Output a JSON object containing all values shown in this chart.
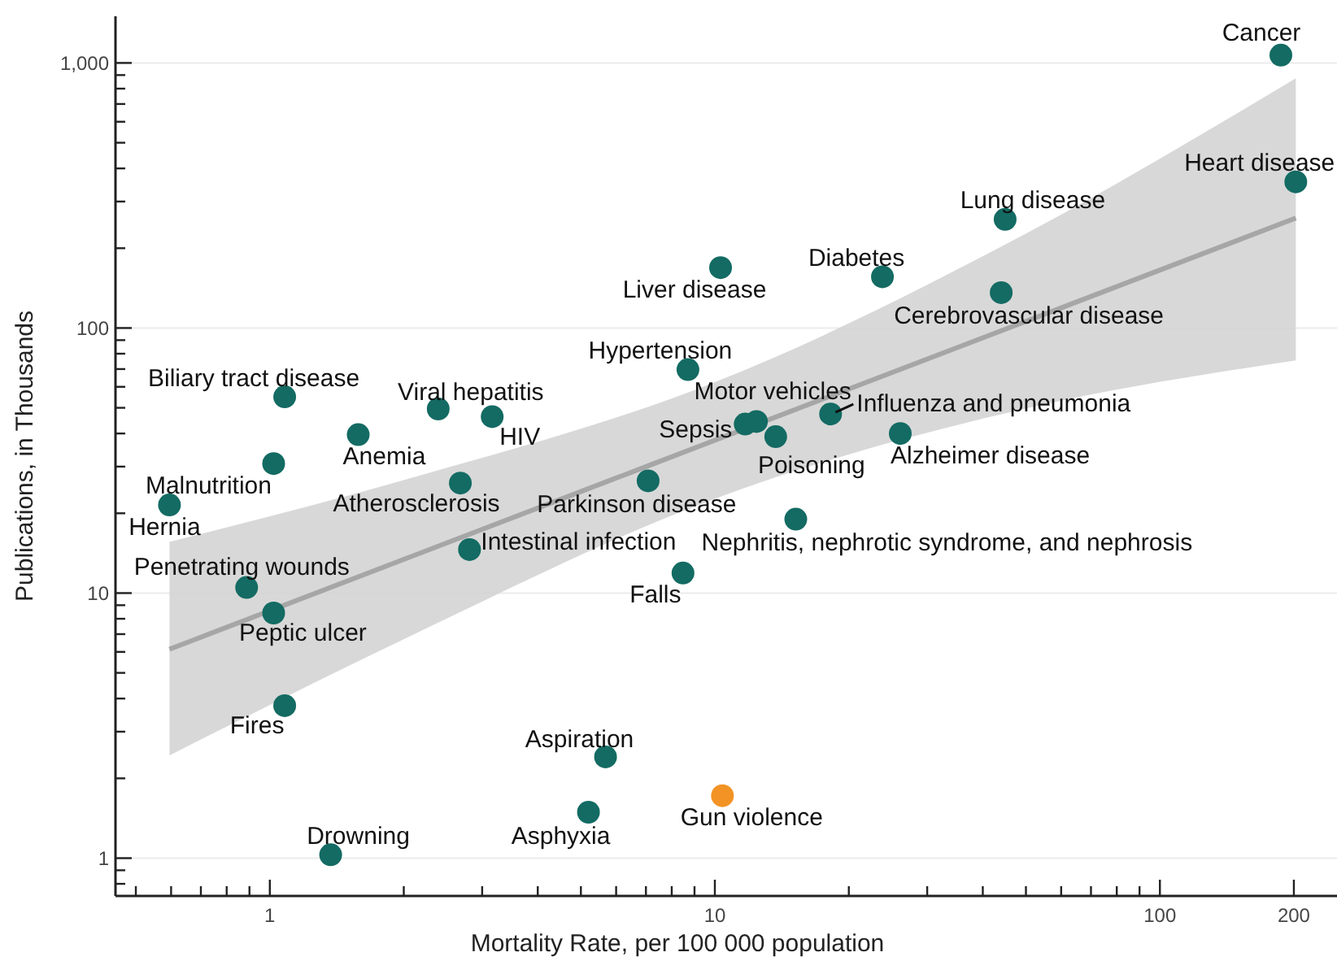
{
  "chart_data": {
    "type": "scatter",
    "xlabel": "Mortality Rate, per 100 000 population",
    "ylabel": "Publications, in Thousands",
    "log": "xy",
    "grid": "y",
    "marker": "circle",
    "xlim": [
      0.45,
      250
    ],
    "ylim": [
      0.72,
      1500
    ],
    "xticks": [
      {
        "value": 0.5,
        "label": null
      },
      {
        "value": 0.6,
        "label": null
      },
      {
        "value": 0.7,
        "label": null
      },
      {
        "value": 0.8,
        "label": null
      },
      {
        "value": 0.9,
        "label": null
      },
      1,
      {
        "value": 2,
        "label": null
      },
      {
        "value": 3,
        "label": null
      },
      {
        "value": 4,
        "label": null
      },
      {
        "value": 5,
        "label": null
      },
      {
        "value": 6,
        "label": null
      },
      {
        "value": 7,
        "label": null
      },
      {
        "value": 8,
        "label": null
      },
      {
        "value": 9,
        "label": null
      },
      10,
      {
        "value": 20,
        "label": null
      },
      {
        "value": 30,
        "label": null
      },
      {
        "value": 40,
        "label": null
      },
      {
        "value": 50,
        "label": null
      },
      {
        "value": 60,
        "label": null
      },
      {
        "value": 70,
        "label": null
      },
      {
        "value": 80,
        "label": null
      },
      {
        "value": 90,
        "label": null
      },
      100,
      200
    ],
    "yticks": [
      {
        "value": 0.8,
        "label": null
      },
      {
        "value": 0.9,
        "label": null
      },
      1,
      {
        "value": 2,
        "label": null
      },
      {
        "value": 3,
        "label": null
      },
      {
        "value": 4,
        "label": null
      },
      {
        "value": 5,
        "label": null
      },
      {
        "value": 6,
        "label": null
      },
      {
        "value": 7,
        "label": null
      },
      {
        "value": 8,
        "label": null
      },
      {
        "value": 9,
        "label": null
      },
      10,
      {
        "value": 20,
        "label": null
      },
      {
        "value": 30,
        "label": null
      },
      {
        "value": 40,
        "label": null
      },
      {
        "value": 50,
        "label": null
      },
      {
        "value": 60,
        "label": null
      },
      {
        "value": 70,
        "label": null
      },
      {
        "value": 80,
        "label": null
      },
      {
        "value": 90,
        "label": null
      },
      100,
      {
        "value": 200,
        "label": null
      },
      {
        "value": 300,
        "label": null
      },
      {
        "value": 400,
        "label": null
      },
      {
        "value": 500,
        "label": null
      },
      {
        "value": 600,
        "label": null
      },
      {
        "value": 700,
        "label": null
      },
      {
        "value": 800,
        "label": null
      },
      {
        "value": 900,
        "label": null
      },
      {
        "value": 1000,
        "label": "1,000"
      }
    ],
    "series": [
      {
        "type": "line",
        "marker": "none",
        "color": "#a6a6a6",
        "x": [
          0.595,
          2,
          10,
          50,
          202
        ],
        "values": [
          6.14,
          13.4,
          37.7,
          106,
          260
        ],
        "lower": [
          2.44,
          6.7,
          22.7,
          49.7,
          75.5
        ],
        "upper": [
          15.6,
          26.7,
          62.5,
          227,
          875
        ]
      },
      {
        "color": "#136b63",
        "x": [
          187,
          202,
          44.9,
          23.8,
          44,
          10.3,
          8.7,
          12.4,
          11.7,
          18.2,
          13.7,
          26.1,
          1.08,
          2.39,
          3.16,
          1.58,
          1.02,
          0.595,
          2.68,
          7.08,
          2.81,
          15.2,
          0.887,
          1.02,
          8.48,
          1.08,
          5.68,
          5.2,
          1.37
        ],
        "values": [
          1070,
          356,
          257,
          156,
          136,
          169,
          69.7,
          44.4,
          43.4,
          47.4,
          38.9,
          40,
          55,
          49.5,
          46.3,
          39.6,
          30.8,
          21.5,
          26,
          26.5,
          14.6,
          19,
          10.5,
          8.41,
          11.9,
          3.76,
          2.41,
          1.49,
          1.03
        ]
      },
      {
        "color": "#f39325",
        "x": [
          10.4
        ],
        "values": [
          1.72
        ]
      }
    ],
    "annotations": [
      {
        "text": "Cancer",
        "x": 187,
        "y": 1070
      },
      {
        "text": "Heart disease",
        "x": 202,
        "y": 356
      },
      {
        "text": "Lung disease",
        "x": 44.9,
        "y": 257
      },
      {
        "text": "Diabetes",
        "x": 23.8,
        "y": 156
      },
      {
        "text": "Cerebrovascular disease",
        "x": 44,
        "y": 136
      },
      {
        "text": "Liver disease",
        "x": 10.3,
        "y": 169
      },
      {
        "text": "Hypertension",
        "x": 8.7,
        "y": 69.7
      },
      {
        "text": "Motor vehicles",
        "x": 12.4,
        "y": 44.4
      },
      {
        "text": "Sepsis",
        "x": 11.7,
        "y": 43.4
      },
      {
        "text": "Influenza and pneumonia",
        "x": 18.2,
        "y": 47.4
      },
      {
        "text": "Poisoning",
        "x": 13.7,
        "y": 38.9
      },
      {
        "text": "Alzheimer disease",
        "x": 26.1,
        "y": 40
      },
      {
        "text": "Biliary tract disease",
        "x": 1.08,
        "y": 55
      },
      {
        "text": "Viral hepatitis",
        "x": 2.39,
        "y": 49.5
      },
      {
        "text": "HIV",
        "x": 3.16,
        "y": 46.3
      },
      {
        "text": "Anemia",
        "x": 1.58,
        "y": 39.6
      },
      {
        "text": "Malnutrition",
        "x": 1.02,
        "y": 30.8
      },
      {
        "text": "Hernia",
        "x": 0.595,
        "y": 21.5
      },
      {
        "text": "Atherosclerosis",
        "x": 2.68,
        "y": 26
      },
      {
        "text": "Parkinson disease",
        "x": 7.08,
        "y": 26.5
      },
      {
        "text": "Intestinal infection",
        "x": 2.81,
        "y": 14.6
      },
      {
        "text": "Nephritis, nephrotic syndrome, and nephrosis",
        "x": 15.2,
        "y": 19
      },
      {
        "text": "Penetrating wounds",
        "x": 0.887,
        "y": 10.5
      },
      {
        "text": "Peptic ulcer",
        "x": 1.02,
        "y": 8.41
      },
      {
        "text": "Falls",
        "x": 8.48,
        "y": 11.9
      },
      {
        "text": "Fires",
        "x": 1.08,
        "y": 3.76
      },
      {
        "text": "Aspiration",
        "x": 5.68,
        "y": 2.41
      },
      {
        "text": "Asphyxia",
        "x": 5.2,
        "y": 1.49
      },
      {
        "text": "Drowning",
        "x": 1.37,
        "y": 1.03
      },
      {
        "text": "Gun violence",
        "x": 10.4,
        "y": 1.72
      }
    ]
  }
}
